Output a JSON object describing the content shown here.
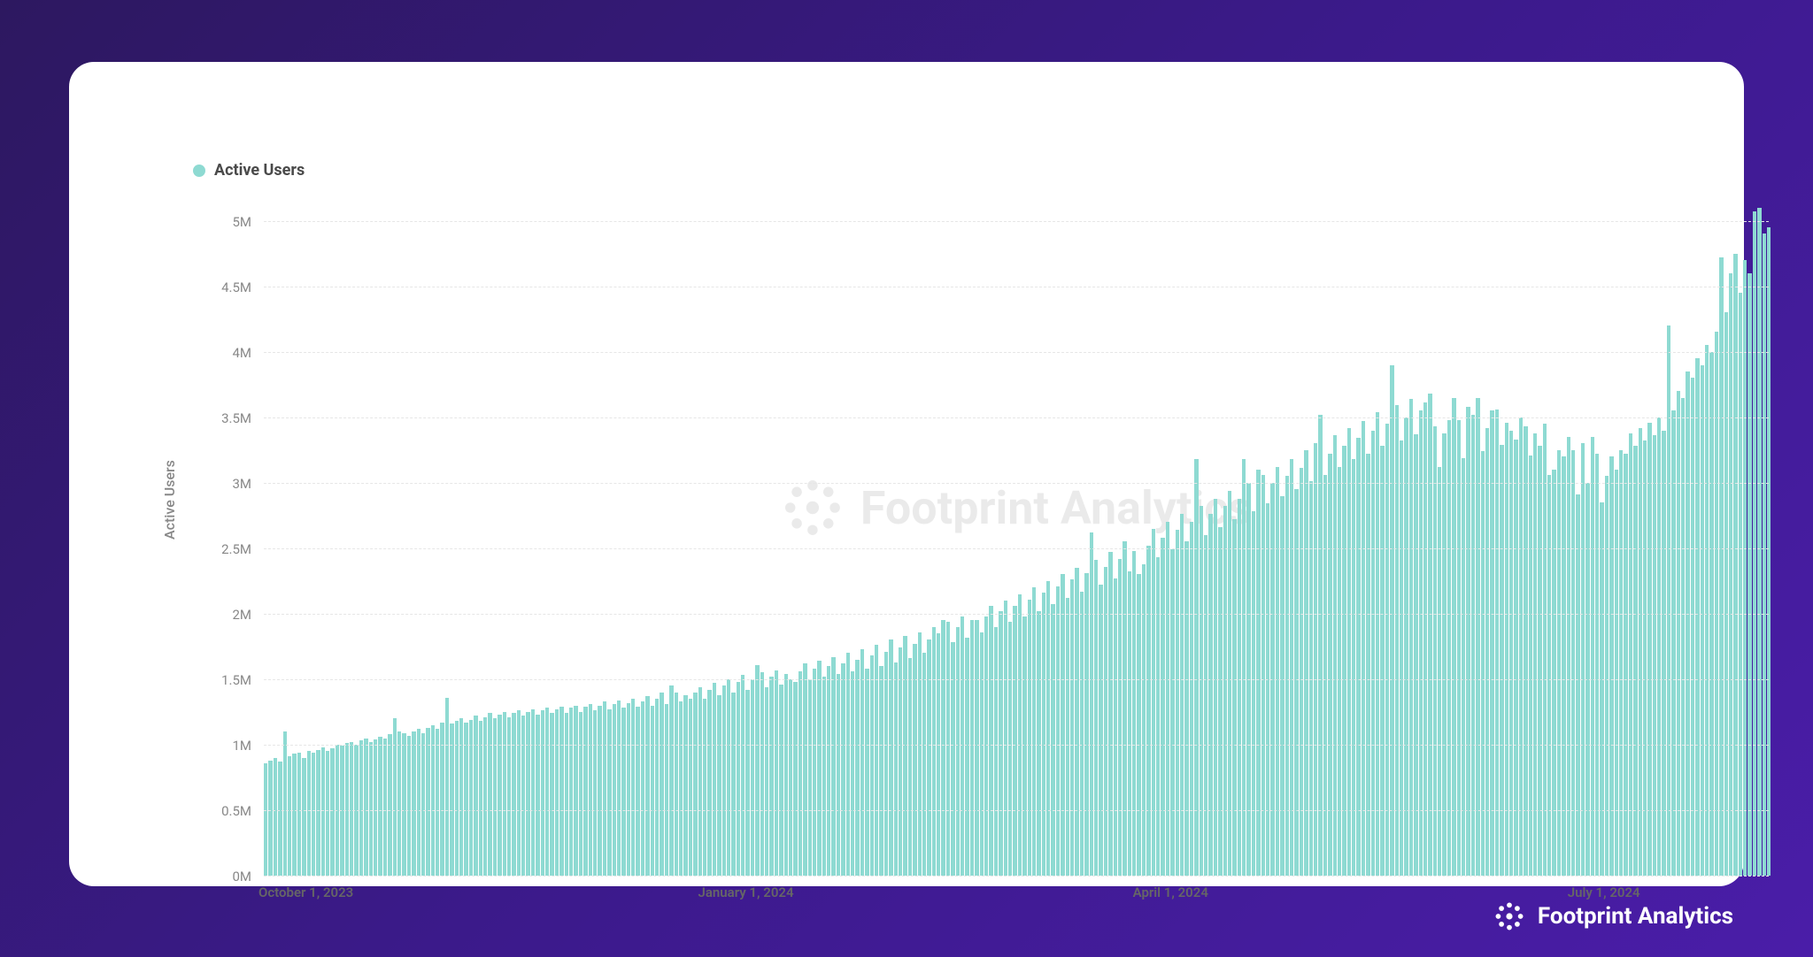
{
  "brand": {
    "name": "Footprint Analytics",
    "icon_color": "#ffffff",
    "watermark_text": "Footprint Analytics"
  },
  "chart": {
    "type": "bar",
    "legend_label": "Active Users",
    "legend_dot_color": "#8edad2",
    "yaxis_label": "Active Users",
    "bar_color": "#8edad2",
    "background_color": "#ffffff",
    "grid_color": "#e6e6e6",
    "ylim": [
      0,
      5200000
    ],
    "yticks": [
      {
        "v": 0,
        "label": "0M"
      },
      {
        "v": 500000,
        "label": "0.5M"
      },
      {
        "v": 1000000,
        "label": "1M"
      },
      {
        "v": 1500000,
        "label": "1.5M"
      },
      {
        "v": 2000000,
        "label": "2M"
      },
      {
        "v": 2500000,
        "label": "2.5M"
      },
      {
        "v": 3000000,
        "label": "3M"
      },
      {
        "v": 3500000,
        "label": "3.5M"
      },
      {
        "v": 4000000,
        "label": "4M"
      },
      {
        "v": 4500000,
        "label": "4.5M"
      },
      {
        "v": 5000000,
        "label": "5M"
      }
    ],
    "xticks": [
      {
        "index": 0,
        "label": "October 1, 2023"
      },
      {
        "index": 92,
        "label": "January 1, 2024"
      },
      {
        "index": 183,
        "label": "April 1, 2024"
      },
      {
        "index": 274,
        "label": "July 1, 2024"
      }
    ],
    "values": [
      860000,
      880000,
      900000,
      870000,
      1100000,
      910000,
      930000,
      940000,
      900000,
      950000,
      940000,
      960000,
      980000,
      950000,
      970000,
      1000000,
      990000,
      1010000,
      1020000,
      1000000,
      1030000,
      1050000,
      1020000,
      1040000,
      1060000,
      1050000,
      1080000,
      1200000,
      1100000,
      1090000,
      1070000,
      1100000,
      1120000,
      1090000,
      1130000,
      1150000,
      1120000,
      1170000,
      1360000,
      1160000,
      1180000,
      1200000,
      1170000,
      1190000,
      1220000,
      1180000,
      1210000,
      1240000,
      1200000,
      1230000,
      1250000,
      1210000,
      1240000,
      1260000,
      1220000,
      1250000,
      1270000,
      1230000,
      1260000,
      1280000,
      1240000,
      1270000,
      1290000,
      1240000,
      1280000,
      1300000,
      1250000,
      1290000,
      1310000,
      1260000,
      1300000,
      1330000,
      1270000,
      1310000,
      1340000,
      1280000,
      1320000,
      1350000,
      1290000,
      1330000,
      1370000,
      1300000,
      1350000,
      1400000,
      1310000,
      1450000,
      1400000,
      1330000,
      1380000,
      1350000,
      1400000,
      1440000,
      1350000,
      1420000,
      1470000,
      1380000,
      1450000,
      1500000,
      1400000,
      1480000,
      1530000,
      1420000,
      1500000,
      1610000,
      1550000,
      1440000,
      1520000,
      1570000,
      1460000,
      1540000,
      1500000,
      1480000,
      1560000,
      1620000,
      1500000,
      1580000,
      1640000,
      1520000,
      1600000,
      1670000,
      1540000,
      1620000,
      1700000,
      1560000,
      1650000,
      1730000,
      1580000,
      1680000,
      1760000,
      1600000,
      1710000,
      1800000,
      1630000,
      1740000,
      1830000,
      1660000,
      1770000,
      1860000,
      1700000,
      1800000,
      1900000,
      1850000,
      1950000,
      1940000,
      1780000,
      1900000,
      1980000,
      1820000,
      1950000,
      1950000,
      1860000,
      1980000,
      2060000,
      1900000,
      2020000,
      2100000,
      1940000,
      2060000,
      2150000,
      1980000,
      2110000,
      2200000,
      2020000,
      2160000,
      2250000,
      2070000,
      2210000,
      2300000,
      2120000,
      2260000,
      2350000,
      2170000,
      2310000,
      2620000,
      2410000,
      2220000,
      2360000,
      2470000,
      2270000,
      2420000,
      2550000,
      2320000,
      2480000,
      2300000,
      2380000,
      2520000,
      2650000,
      2430000,
      2580000,
      2700000,
      2490000,
      2640000,
      2760000,
      2550000,
      2700000,
      3180000,
      2820000,
      2600000,
      2760000,
      2880000,
      2660000,
      2820000,
      2940000,
      2720000,
      2880000,
      3180000,
      3000000,
      2780000,
      3100000,
      3060000,
      2840000,
      3000000,
      3120000,
      2900000,
      3050000,
      3180000,
      2950000,
      3110000,
      3250000,
      3010000,
      3300000,
      3520000,
      3060000,
      3220000,
      3360000,
      3120000,
      3280000,
      3420000,
      3180000,
      3340000,
      3470000,
      3220000,
      3400000,
      3540000,
      3280000,
      3450000,
      3900000,
      3590000,
      3320000,
      3500000,
      3640000,
      3370000,
      3550000,
      3610000,
      3680000,
      3430000,
      3120000,
      3380000,
      3480000,
      3650000,
      3480000,
      3190000,
      3580000,
      3520000,
      3650000,
      3240000,
      3420000,
      3550000,
      3560000,
      3290000,
      3460000,
      3400000,
      3330000,
      3500000,
      3430000,
      3210000,
      3380000,
      3280000,
      3450000,
      3060000,
      3100000,
      3250000,
      3200000,
      3350000,
      3250000,
      2910000,
      3300000,
      3000000,
      3350000,
      3220000,
      2850000,
      3050000,
      3200000,
      3100000,
      3250000,
      3220000,
      3380000,
      3280000,
      3420000,
      3320000,
      3460000,
      3360000,
      3500000,
      3400000,
      4200000,
      3550000,
      3700000,
      3650000,
      3850000,
      3800000,
      3950000,
      3900000,
      4050000,
      4000000,
      4150000,
      4720000,
      4300000,
      4600000,
      4750000,
      4450000,
      4700000,
      4600000,
      5070000,
      5100000,
      4900000,
      4950000
    ]
  }
}
